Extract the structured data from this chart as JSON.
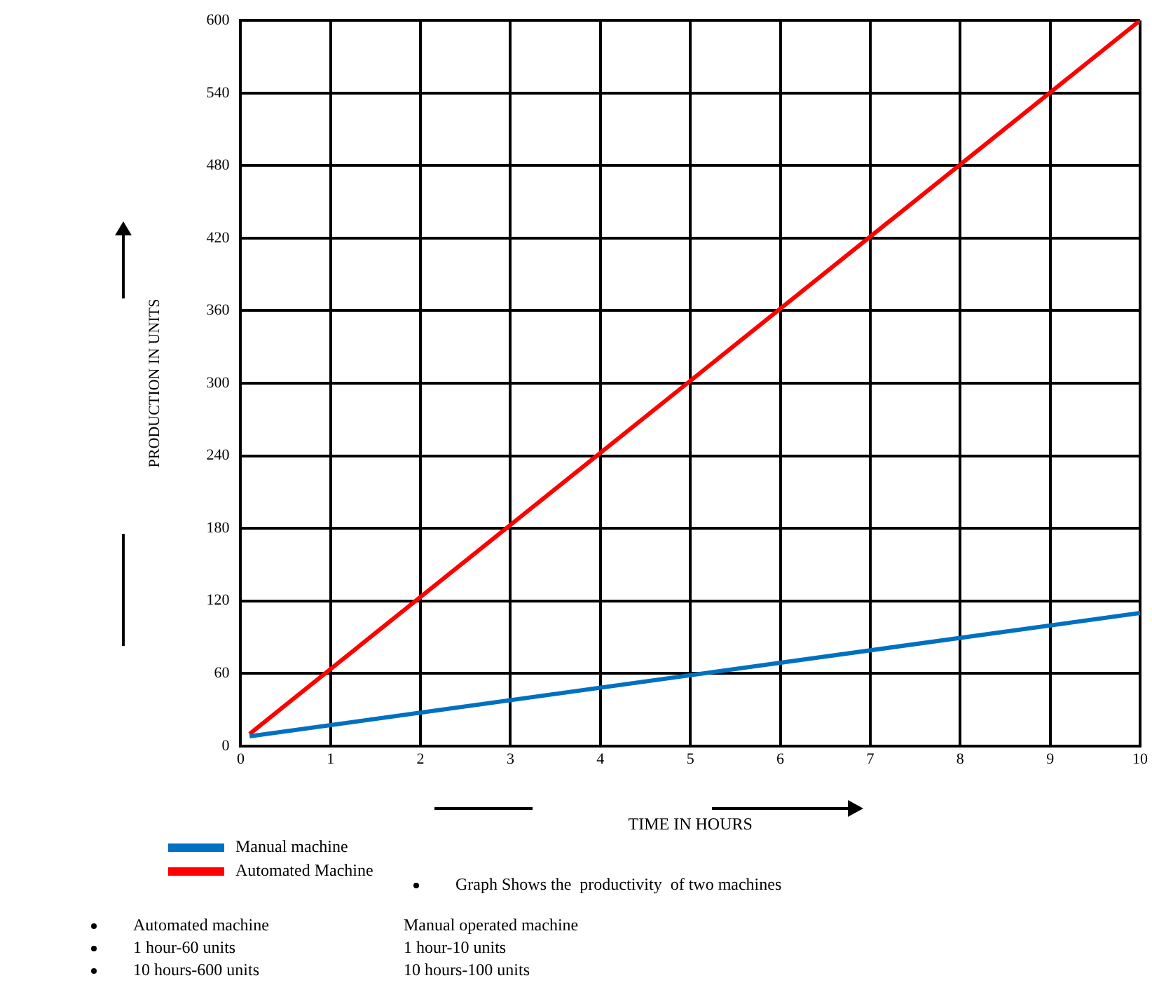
{
  "chart_data": {
    "type": "line",
    "xlabel": "TIME IN HOURS",
    "ylabel": "PRODUCTION IN UNITS",
    "xlim": [
      0,
      10
    ],
    "xticks": [
      0,
      1,
      2,
      3,
      4,
      5,
      6,
      7,
      8,
      9,
      10
    ],
    "ylim": [
      0,
      600
    ],
    "yticks": [
      0,
      60,
      120,
      180,
      240,
      300,
      360,
      420,
      480,
      540,
      600
    ],
    "grid": true,
    "legend": "bottom left",
    "marker": "none",
    "line_style": "solid",
    "x": [
      0.1,
      10
    ],
    "series": [
      {
        "name": "Manual machine",
        "color": "#0070c0",
        "values": [
          8,
          110
        ]
      },
      {
        "name": "Automated Machine",
        "color": "#ff0000",
        "values": [
          10,
          600
        ]
      }
    ],
    "annotations": [
      "Graph Shows the  productivity  of two machines",
      "Automated machine",
      "Manual operated machine",
      "1 hour-60 units",
      "1 hour-10 units",
      "10 hours-600 units",
      "10 hours-100 units"
    ]
  }
}
